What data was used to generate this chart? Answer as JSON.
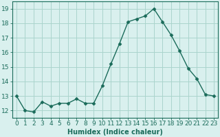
{
  "x": [
    0,
    1,
    2,
    3,
    4,
    5,
    6,
    7,
    8,
    9,
    10,
    11,
    12,
    13,
    14,
    15,
    16,
    17,
    18,
    19,
    20,
    21,
    22,
    23
  ],
  "y": [
    13.0,
    12.0,
    11.9,
    12.6,
    12.3,
    12.5,
    12.5,
    12.8,
    12.5,
    12.5,
    13.7,
    15.2,
    16.6,
    18.1,
    18.3,
    18.5,
    19.0,
    18.1,
    17.2,
    16.1,
    14.9,
    14.2,
    13.1,
    13.0
  ],
  "line_color": "#1a6b5a",
  "marker": "D",
  "markersize": 2.5,
  "bg_color": "#d9f0ee",
  "grid_color": "#aad4cc",
  "xlabel": "Humidex (Indice chaleur)",
  "xlim": [
    -0.5,
    23.5
  ],
  "ylim": [
    11.5,
    19.5
  ],
  "yticks": [
    12,
    13,
    14,
    15,
    16,
    17,
    18,
    19
  ],
  "xticks": [
    0,
    1,
    2,
    3,
    4,
    5,
    6,
    7,
    8,
    9,
    10,
    11,
    12,
    13,
    14,
    15,
    16,
    17,
    18,
    19,
    20,
    21,
    22,
    23
  ],
  "tick_color": "#1a6b5a",
  "label_fontsize": 7,
  "tick_fontsize": 6.5,
  "linewidth": 1.0
}
